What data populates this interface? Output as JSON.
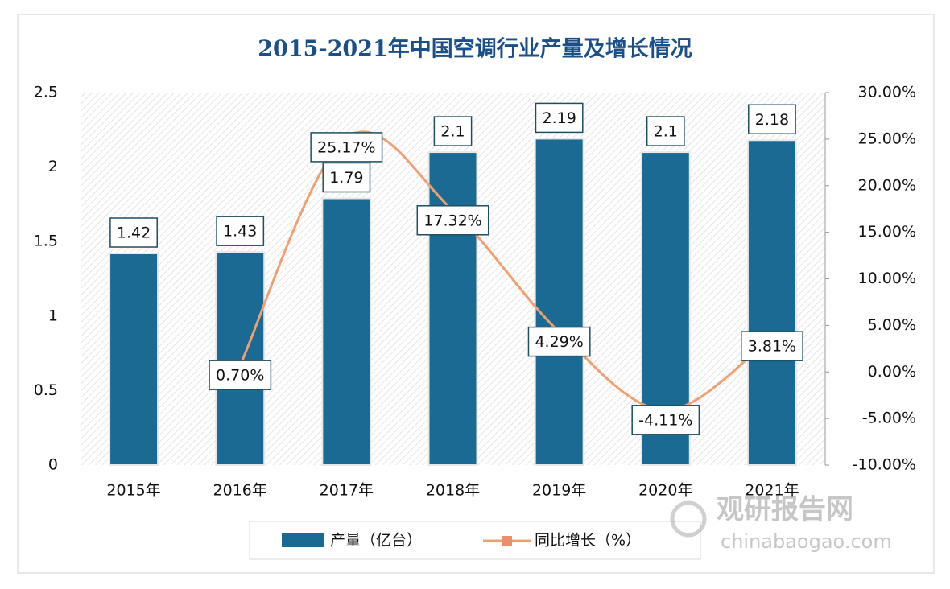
{
  "chart_data": {
    "type": "combo",
    "title": "2015-2021年中国空调行业产量及增长情况",
    "categories": [
      "2015年",
      "2016年",
      "2017年",
      "2018年",
      "2019年",
      "2020年",
      "2021年"
    ],
    "series": [
      {
        "name": "产量（亿台）",
        "type": "bar",
        "color": "#1b6a94",
        "values": [
          1.42,
          1.43,
          1.79,
          2.1,
          2.19,
          2.1,
          2.18
        ]
      },
      {
        "name": "同比增长（%）",
        "type": "line",
        "axis": "y2",
        "color": "#f0a070",
        "values": [
          null,
          0.7,
          25.17,
          17.32,
          4.29,
          -4.11,
          3.81
        ],
        "value_labels": [
          null,
          "0.70%",
          "25.17%",
          "17.32%",
          "4.29%",
          "-4.11%",
          "3.81%"
        ]
      }
    ],
    "ylim": [
      0,
      2.5
    ],
    "yticks": [
      0,
      0.5,
      1,
      1.5,
      2,
      2.5
    ],
    "y2lim": [
      -10,
      30
    ],
    "y2ticks": [
      {
        "value": -10,
        "label": "-10.00%"
      },
      {
        "value": -5,
        "label": "-5.00%"
      },
      {
        "value": 0,
        "label": "0.00%"
      },
      {
        "value": 5,
        "label": "5.00%"
      },
      {
        "value": 10,
        "label": "10.00%"
      },
      {
        "value": 15,
        "label": "15.00%"
      },
      {
        "value": 20,
        "label": "20.00%"
      },
      {
        "value": 25,
        "label": "25.00%"
      },
      {
        "value": 30,
        "label": "30.00%"
      }
    ],
    "legend": "bottom",
    "watermark": {
      "title": "观研报告网",
      "url": "chinabaogao.com"
    }
  }
}
